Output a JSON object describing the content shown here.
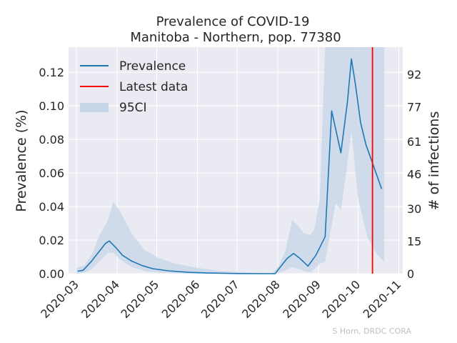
{
  "chart_data": {
    "type": "line",
    "title": "Prevalence of COVID-19",
    "subtitle": "Manitoba - Northern, pop. 77380",
    "ylabel": "Prevalence (%)",
    "y2label": "# of infections",
    "credit": "S Horn, DRDC CORA",
    "grid": true,
    "legend_position": "top-left",
    "xlim": [
      "2020-02-24",
      "2020-11-04"
    ],
    "ylim": [
      0,
      0.135
    ],
    "y2lim": [
      0,
      104.5
    ],
    "xticks": [
      {
        "date": "2020-03-01",
        "label": "2020-03"
      },
      {
        "date": "2020-04-01",
        "label": "2020-04"
      },
      {
        "date": "2020-05-01",
        "label": "2020-05"
      },
      {
        "date": "2020-06-01",
        "label": "2020-06"
      },
      {
        "date": "2020-07-01",
        "label": "2020-07"
      },
      {
        "date": "2020-08-01",
        "label": "2020-08"
      },
      {
        "date": "2020-09-01",
        "label": "2020-09"
      },
      {
        "date": "2020-10-01",
        "label": "2020-10"
      },
      {
        "date": "2020-11-01",
        "label": "2020-11"
      }
    ],
    "yticks": [
      {
        "value": 0.0,
        "label": "0.00"
      },
      {
        "value": 0.02,
        "label": "0.02"
      },
      {
        "value": 0.04,
        "label": "0.04"
      },
      {
        "value": 0.06,
        "label": "0.06"
      },
      {
        "value": 0.08,
        "label": "0.08"
      },
      {
        "value": 0.1,
        "label": "0.10"
      },
      {
        "value": 0.12,
        "label": "0.12"
      }
    ],
    "y2ticks": [
      {
        "value": 0,
        "label": "0"
      },
      {
        "value": 15,
        "label": "15"
      },
      {
        "value": 30,
        "label": "30"
      },
      {
        "value": 46,
        "label": "46"
      },
      {
        "value": 61,
        "label": "61"
      },
      {
        "value": 77,
        "label": "77"
      },
      {
        "value": 92,
        "label": "92"
      }
    ],
    "legend": [
      {
        "label": "Prevalence",
        "kind": "line",
        "color": "#1f77b4"
      },
      {
        "label": "Latest data",
        "kind": "line",
        "color": "#ff0000"
      },
      {
        "label": "95CI",
        "kind": "fill",
        "color": "#c6d4e7"
      }
    ],
    "latest_data_date": "2020-10-12",
    "series": [
      {
        "name": "Prevalence",
        "color": "#1f77b4",
        "points": [
          {
            "x": "2020-03-02",
            "y": 0.0015
          },
          {
            "x": "2020-03-06",
            "y": 0.002
          },
          {
            "x": "2020-03-12",
            "y": 0.007
          },
          {
            "x": "2020-03-18",
            "y": 0.013
          },
          {
            "x": "2020-03-23",
            "y": 0.018
          },
          {
            "x": "2020-03-26",
            "y": 0.0195
          },
          {
            "x": "2020-03-31",
            "y": 0.0155
          },
          {
            "x": "2020-04-05",
            "y": 0.011
          },
          {
            "x": "2020-04-12",
            "y": 0.0075
          },
          {
            "x": "2020-04-20",
            "y": 0.0048
          },
          {
            "x": "2020-04-28",
            "y": 0.003
          },
          {
            "x": "2020-05-10",
            "y": 0.0017
          },
          {
            "x": "2020-05-25",
            "y": 0.0008
          },
          {
            "x": "2020-06-10",
            "y": 0.0004
          },
          {
            "x": "2020-07-01",
            "y": 0.0001
          },
          {
            "x": "2020-07-30",
            "y": 0.0
          },
          {
            "x": "2020-08-03",
            "y": 0.004
          },
          {
            "x": "2020-08-08",
            "y": 0.009
          },
          {
            "x": "2020-08-13",
            "y": 0.012
          },
          {
            "x": "2020-08-18",
            "y": 0.009
          },
          {
            "x": "2020-08-24",
            "y": 0.0045
          },
          {
            "x": "2020-08-30",
            "y": 0.011
          },
          {
            "x": "2020-09-06",
            "y": 0.022
          },
          {
            "x": "2020-09-11",
            "y": 0.097
          },
          {
            "x": "2020-09-18",
            "y": 0.072
          },
          {
            "x": "2020-09-23",
            "y": 0.1025
          },
          {
            "x": "2020-09-26",
            "y": 0.128
          },
          {
            "x": "2020-09-29",
            "y": 0.113
          },
          {
            "x": "2020-10-03",
            "y": 0.09
          },
          {
            "x": "2020-10-07",
            "y": 0.077
          },
          {
            "x": "2020-10-19",
            "y": 0.0505
          }
        ]
      }
    ],
    "ci95": {
      "name": "95CI",
      "color": "#c6d4e7",
      "points": [
        {
          "x": "2020-03-01",
          "lo": 0.0,
          "hi": 0.0035
        },
        {
          "x": "2020-03-07",
          "lo": 0.0005,
          "hi": 0.005
        },
        {
          "x": "2020-03-13",
          "lo": 0.003,
          "hi": 0.012
        },
        {
          "x": "2020-03-18",
          "lo": 0.007,
          "hi": 0.022
        },
        {
          "x": "2020-03-25",
          "lo": 0.0125,
          "hi": 0.032
        },
        {
          "x": "2020-03-29",
          "lo": 0.0125,
          "hi": 0.043
        },
        {
          "x": "2020-04-04",
          "lo": 0.008,
          "hi": 0.036
        },
        {
          "x": "2020-04-12",
          "lo": 0.004,
          "hi": 0.024
        },
        {
          "x": "2020-04-22",
          "lo": 0.0015,
          "hi": 0.014
        },
        {
          "x": "2020-05-02",
          "lo": 0.0005,
          "hi": 0.0095
        },
        {
          "x": "2020-05-15",
          "lo": 0.0002,
          "hi": 0.006
        },
        {
          "x": "2020-06-01",
          "lo": 0.0,
          "hi": 0.0035
        },
        {
          "x": "2020-06-20",
          "lo": 0.0,
          "hi": 0.0015
        },
        {
          "x": "2020-07-15",
          "lo": 0.0,
          "hi": 0.0004
        },
        {
          "x": "2020-07-28",
          "lo": 0.0,
          "hi": 0.0
        },
        {
          "x": "2020-08-02",
          "lo": 0.0005,
          "hi": 0.005
        },
        {
          "x": "2020-08-07",
          "lo": 0.002,
          "hi": 0.014
        },
        {
          "x": "2020-08-12",
          "lo": 0.004,
          "hi": 0.032
        },
        {
          "x": "2020-08-16",
          "lo": 0.003,
          "hi": 0.029
        },
        {
          "x": "2020-08-21",
          "lo": 0.0015,
          "hi": 0.024
        },
        {
          "x": "2020-08-26",
          "lo": 0.001,
          "hi": 0.023
        },
        {
          "x": "2020-08-29",
          "lo": 0.003,
          "hi": 0.027
        },
        {
          "x": "2020-09-02",
          "lo": 0.006,
          "hi": 0.045
        },
        {
          "x": "2020-09-06",
          "lo": 0.007,
          "hi": 0.135
        },
        {
          "x": "2020-09-14",
          "lo": 0.042,
          "hi": 0.135
        },
        {
          "x": "2020-09-18",
          "lo": 0.038,
          "hi": 0.135
        },
        {
          "x": "2020-09-22",
          "lo": 0.06,
          "hi": 0.135
        },
        {
          "x": "2020-09-26",
          "lo": 0.085,
          "hi": 0.135
        },
        {
          "x": "2020-10-01",
          "lo": 0.045,
          "hi": 0.135
        },
        {
          "x": "2020-10-08",
          "lo": 0.022,
          "hi": 0.135
        },
        {
          "x": "2020-10-15",
          "lo": 0.012,
          "hi": 0.135
        },
        {
          "x": "2020-10-21",
          "lo": 0.007,
          "hi": 0.135
        }
      ]
    }
  }
}
